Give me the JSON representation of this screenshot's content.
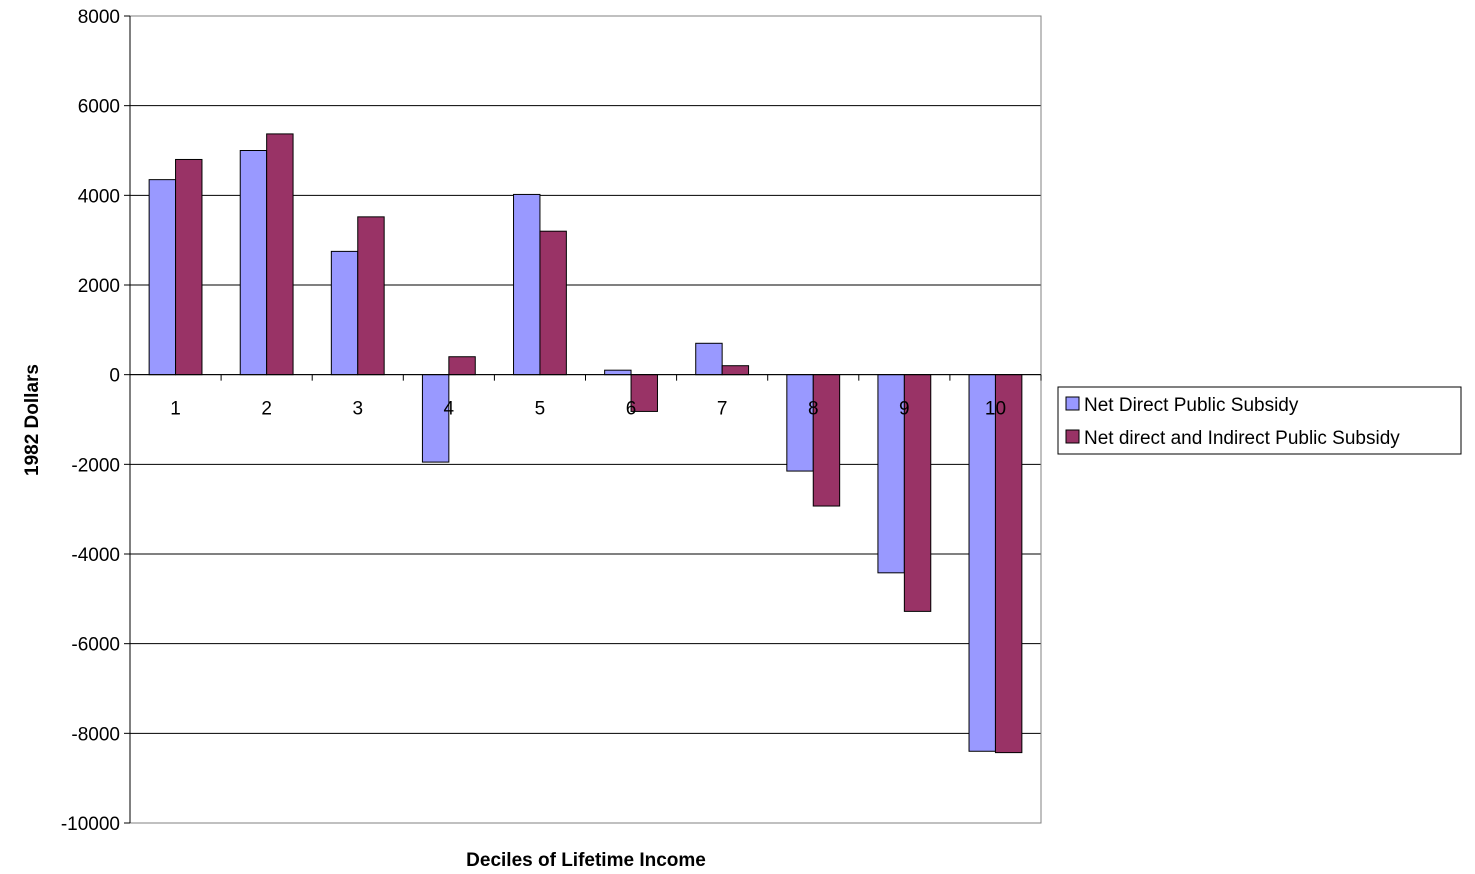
{
  "chart_data": {
    "type": "bar",
    "title": "",
    "xlabel": "Deciles of Lifetime Income",
    "ylabel": "1982 Dollars",
    "categories": [
      "1",
      "2",
      "3",
      "4",
      "5",
      "6",
      "7",
      "8",
      "9",
      "10"
    ],
    "series": [
      {
        "name": "Net Direct Public Subsidy",
        "color": "#9999ff",
        "values": [
          4350,
          5000,
          2750,
          -1950,
          4020,
          100,
          700,
          -2150,
          -4420,
          -8400
        ]
      },
      {
        "name": "Net direct and Indirect Public Subsidy",
        "color": "#993366",
        "values": [
          4800,
          5370,
          3520,
          400,
          3200,
          -820,
          200,
          -2930,
          -5280,
          -8430
        ]
      }
    ],
    "ylim": [
      -10000,
      8000
    ],
    "yticks": [
      8000,
      6000,
      4000,
      2000,
      0,
      -2000,
      -4000,
      -6000,
      -8000,
      -10000
    ],
    "grid": true,
    "legend_position": "right"
  }
}
